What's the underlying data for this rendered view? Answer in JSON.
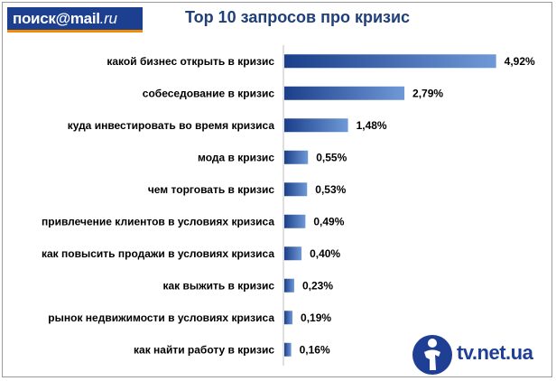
{
  "logo": {
    "part1": "поиск",
    "part2": "@mail",
    "part3": ".ru"
  },
  "watermark": {
    "text": "tv.net.ua",
    "icon": "person-circle-icon"
  },
  "colors": {
    "bar_dark": "#1b3f8b",
    "bar_light": "#6f99d6",
    "title": "#1f3f7a",
    "logo_bg": "#1c3f8f",
    "logo_accent": "#f28c00"
  },
  "chart_data": {
    "type": "bar",
    "orientation": "horizontal",
    "title": "Top 10  запросов про кризис",
    "categories": [
      "какой бизнес открыть  в кризис",
      "собеседование  в кризис",
      "куда инвестировать   во время кризиса",
      "мода в кризис",
      "чем торговать  в кризис",
      "привлечение клиентов в условиях кризиса",
      "как повысить продажи  в условиях кризиса",
      "как выжить  в кризис",
      "рынок недвижимости  в условиях кризиса",
      "как найти работу в кризис"
    ],
    "values": [
      4.92,
      2.79,
      1.48,
      0.55,
      0.53,
      0.49,
      0.4,
      0.23,
      0.19,
      0.16
    ],
    "value_labels": [
      "4,92%",
      "2,79%",
      "1,48%",
      "0,55%",
      "0,53%",
      "0,49%",
      "0,40%",
      "0,23%",
      "0,19%",
      "0,16%"
    ],
    "unit": "%",
    "xlim": [
      0,
      5.2
    ],
    "grid": false,
    "legend": "none"
  }
}
